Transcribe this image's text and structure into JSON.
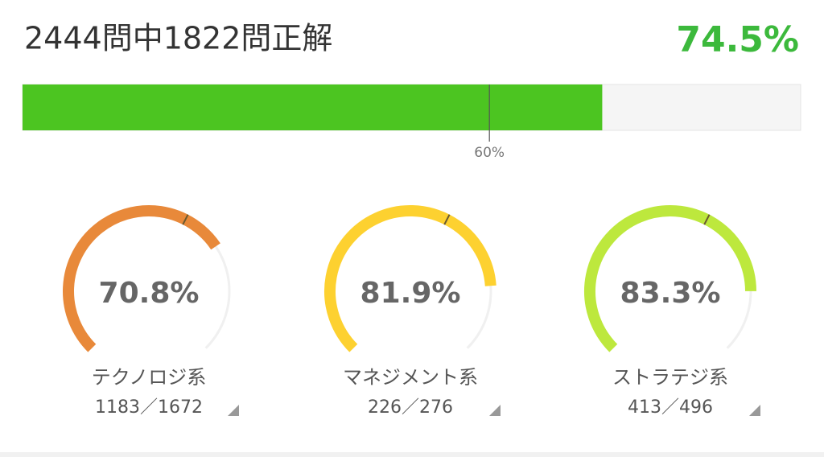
{
  "summary": {
    "title": "2444問中1822問正解",
    "rate": {
      "value": 74.5,
      "label": "74.5%"
    },
    "threshold": {
      "value": 60,
      "label": "60%"
    }
  },
  "categories": [
    {
      "name": "テクノロジ系",
      "counts": "1183／1672",
      "rate": {
        "value": 70.8,
        "label": "70.8%"
      },
      "color": "#e8893a"
    },
    {
      "name": "マネジメント系",
      "counts": "226／276",
      "rate": {
        "value": 81.9,
        "label": "81.9%"
      },
      "color": "#fdd130"
    },
    {
      "name": "ストラテジ系",
      "counts": "413／496",
      "rate": {
        "value": 83.3,
        "label": "83.3%"
      },
      "color": "#bde83d"
    }
  ]
}
